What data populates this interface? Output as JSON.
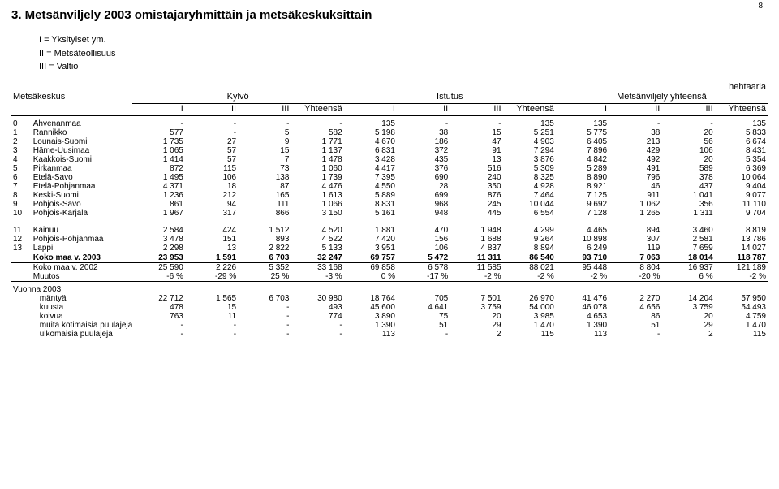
{
  "page_number": "8",
  "title": "3. Metsänviljely 2003 omistajaryhmittäin ja metsäkeskuksittain",
  "legend": {
    "i": "I  = Yksityiset ym.",
    "ii": "II  = Metsäteollisuus",
    "iii": "III = Valtio"
  },
  "unit_label": "hehtaaria",
  "group_headers": {
    "row_label": "Metsäkeskus",
    "g1": "Kylvö",
    "g2": "Istutus",
    "g3": "Metsänviljely yhteensä"
  },
  "sub_headers": [
    "I",
    "II",
    "III",
    "Yhteensä",
    "I",
    "II",
    "III",
    "Yhteensä",
    "I",
    "II",
    "III",
    "Yhteensä"
  ],
  "rows_main": [
    [
      "0",
      "Ahvenanmaa",
      "-",
      "-",
      "-",
      "-",
      "135",
      "-",
      "-",
      "135",
      "135",
      "-",
      "-",
      "135"
    ],
    [
      "1",
      "Rannikko",
      "577",
      "-",
      "5",
      "582",
      "5 198",
      "38",
      "15",
      "5 251",
      "5 775",
      "38",
      "20",
      "5 833"
    ],
    [
      "2",
      "Lounais-Suomi",
      "1 735",
      "27",
      "9",
      "1 771",
      "4 670",
      "186",
      "47",
      "4 903",
      "6 405",
      "213",
      "56",
      "6 674"
    ],
    [
      "3",
      "Häme-Uusimaa",
      "1 065",
      "57",
      "15",
      "1 137",
      "6 831",
      "372",
      "91",
      "7 294",
      "7 896",
      "429",
      "106",
      "8 431"
    ],
    [
      "4",
      "Kaakkois-Suomi",
      "1 414",
      "57",
      "7",
      "1 478",
      "3 428",
      "435",
      "13",
      "3 876",
      "4 842",
      "492",
      "20",
      "5 354"
    ],
    [
      "5",
      "Pirkanmaa",
      "872",
      "115",
      "73",
      "1 060",
      "4 417",
      "376",
      "516",
      "5 309",
      "5 289",
      "491",
      "589",
      "6 369"
    ],
    [
      "6",
      "Etelä-Savo",
      "1 495",
      "106",
      "138",
      "1 739",
      "7 395",
      "690",
      "240",
      "8 325",
      "8 890",
      "796",
      "378",
      "10 064"
    ],
    [
      "7",
      "Etelä-Pohjanmaa",
      "4 371",
      "18",
      "87",
      "4 476",
      "4 550",
      "28",
      "350",
      "4 928",
      "8 921",
      "46",
      "437",
      "9 404"
    ],
    [
      "8",
      "Keski-Suomi",
      "1 236",
      "212",
      "165",
      "1 613",
      "5 889",
      "699",
      "876",
      "7 464",
      "7 125",
      "911",
      "1 041",
      "9 077"
    ],
    [
      "9",
      "Pohjois-Savo",
      "861",
      "94",
      "111",
      "1 066",
      "8 831",
      "968",
      "245",
      "10 044",
      "9 692",
      "1 062",
      "356",
      "11 110"
    ],
    [
      "10",
      "Pohjois-Karjala",
      "1 967",
      "317",
      "866",
      "3 150",
      "5 161",
      "948",
      "445",
      "6 554",
      "7 128",
      "1 265",
      "1 311",
      "9 704"
    ]
  ],
  "rows_mid": [
    [
      "11",
      "Kainuu",
      "2 584",
      "424",
      "1 512",
      "4 520",
      "1 881",
      "470",
      "1 948",
      "4 299",
      "4 465",
      "894",
      "3 460",
      "8 819"
    ],
    [
      "12",
      "Pohjois-Pohjanmaa",
      "3 478",
      "151",
      "893",
      "4 522",
      "7 420",
      "156",
      "1 688",
      "9 264",
      "10 898",
      "307",
      "2 581",
      "13 786"
    ],
    [
      "13",
      "Lappi",
      "2 298",
      "13",
      "2 822",
      "5 133",
      "3 951",
      "106",
      "4 837",
      "8 894",
      "6 249",
      "119",
      "7 659",
      "14 027"
    ]
  ],
  "total_row": [
    "",
    "Koko maa v. 2003",
    "23 953",
    "1 591",
    "6 703",
    "32 247",
    "69 757",
    "5 472",
    "11 311",
    "86 540",
    "93 710",
    "7 063",
    "18 014",
    "118 787"
  ],
  "prev_rows": [
    [
      "",
      "Koko maa v. 2002",
      "25 590",
      "2 226",
      "5 352",
      "33 168",
      "69 858",
      "6 578",
      "11 585",
      "88 021",
      "95 448",
      "8 804",
      "16 937",
      "121 189"
    ],
    [
      "",
      "Muutos",
      "-6 %",
      "-29 %",
      "25 %",
      "-3 %",
      "0 %",
      "-17 %",
      "-2 %",
      "-2 %",
      "-2 %",
      "-20 %",
      "6 %",
      "-2 %"
    ]
  ],
  "year_label": "Vuonna 2003:",
  "species_rows": [
    [
      "",
      "mäntyä",
      "22 712",
      "1 565",
      "6 703",
      "30 980",
      "18 764",
      "705",
      "7 501",
      "26 970",
      "41 476",
      "2 270",
      "14 204",
      "57 950"
    ],
    [
      "",
      "kuusta",
      "478",
      "15",
      "-",
      "493",
      "45 600",
      "4 641",
      "3 759",
      "54 000",
      "46 078",
      "4 656",
      "3 759",
      "54 493"
    ],
    [
      "",
      "koivua",
      "763",
      "11",
      "-",
      "774",
      "3 890",
      "75",
      "20",
      "3 985",
      "4 653",
      "86",
      "20",
      "4 759"
    ],
    [
      "",
      "muita kotimaisia puulajeja",
      "-",
      "-",
      "-",
      "-",
      "1 390",
      "51",
      "29",
      "1 470",
      "1 390",
      "51",
      "29",
      "1 470"
    ],
    [
      "",
      "ulkomaisia puulajeja",
      "-",
      "-",
      "-",
      "-",
      "113",
      "-",
      "2",
      "115",
      "113",
      "-",
      "2",
      "115"
    ]
  ]
}
